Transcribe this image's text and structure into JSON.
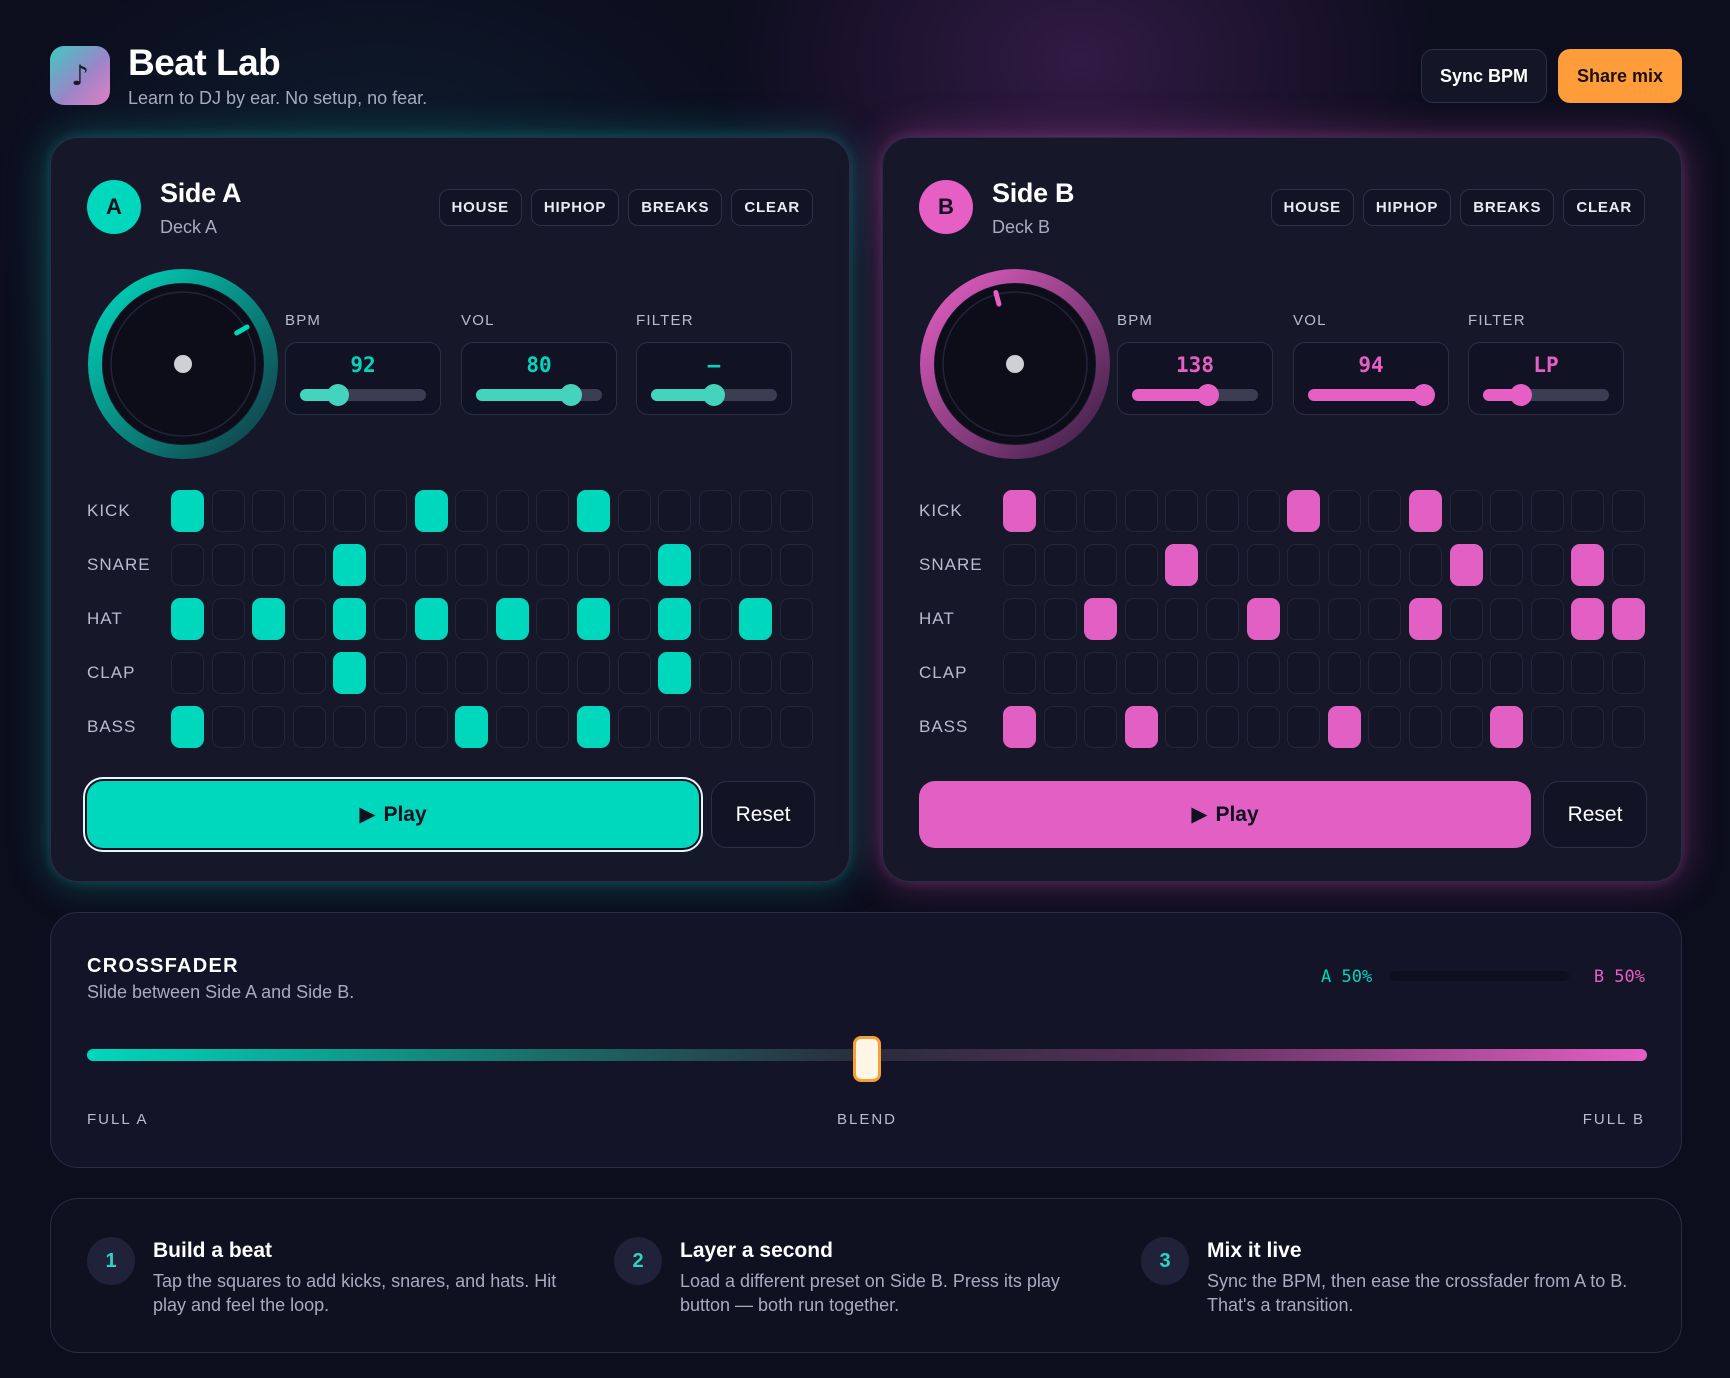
{
  "app": {
    "icon": "music-note-icon",
    "title": "Beat Lab",
    "subtitle": "Learn to DJ by ear. No setup, no fear.",
    "sync_label": "Sync BPM",
    "share_label": "Share mix"
  },
  "colors": {
    "deck_a": "#00d8bd",
    "deck_b": "#e55fc4",
    "accent": "#ff9d3a",
    "background": "#0c0d1d"
  },
  "deck_a": {
    "badge": "A",
    "title": "Side A",
    "subtitle": "Deck A",
    "presets": [
      "HOUSE",
      "HIPHOP",
      "BREAKS",
      "CLEAR"
    ],
    "controls": {
      "bpm": {
        "label": "BPM",
        "value": "92",
        "level": 0.3
      },
      "vol": {
        "label": "VOL",
        "value": "80",
        "level": 0.75
      },
      "filter": {
        "label": "FILTER",
        "value": "–",
        "level": 0.5
      }
    },
    "jog_angle_deg": 60,
    "rows": [
      {
        "label": "KICK",
        "steps": [
          1,
          0,
          0,
          0,
          0,
          0,
          1,
          0,
          0,
          0,
          1,
          0,
          0,
          0,
          0,
          0
        ]
      },
      {
        "label": "SNARE",
        "steps": [
          0,
          0,
          0,
          0,
          1,
          0,
          0,
          0,
          0,
          0,
          0,
          0,
          1,
          0,
          0,
          0
        ]
      },
      {
        "label": "HAT",
        "steps": [
          1,
          0,
          1,
          0,
          1,
          0,
          1,
          0,
          1,
          0,
          1,
          0,
          1,
          0,
          1,
          0
        ]
      },
      {
        "label": "CLAP",
        "steps": [
          0,
          0,
          0,
          0,
          1,
          0,
          0,
          0,
          0,
          0,
          0,
          0,
          1,
          0,
          0,
          0
        ]
      },
      {
        "label": "BASS",
        "steps": [
          1,
          0,
          0,
          0,
          0,
          0,
          0,
          1,
          0,
          0,
          1,
          0,
          0,
          0,
          0,
          0
        ]
      }
    ],
    "play_label": "Play",
    "reset_label": "Reset"
  },
  "deck_b": {
    "badge": "B",
    "title": "Side B",
    "subtitle": "Deck B",
    "presets": [
      "HOUSE",
      "HIPHOP",
      "BREAKS",
      "CLEAR"
    ],
    "controls": {
      "bpm": {
        "label": "BPM",
        "value": "138",
        "level": 0.6
      },
      "vol": {
        "label": "VOL",
        "value": "94",
        "level": 0.92
      },
      "filter": {
        "label": "FILTER",
        "value": "LP",
        "level": 0.3
      }
    },
    "jog_angle_deg": -15,
    "rows": [
      {
        "label": "KICK",
        "steps": [
          1,
          0,
          0,
          0,
          0,
          0,
          0,
          1,
          0,
          0,
          1,
          0,
          0,
          0,
          0,
          0
        ]
      },
      {
        "label": "SNARE",
        "steps": [
          0,
          0,
          0,
          0,
          1,
          0,
          0,
          0,
          0,
          0,
          0,
          1,
          0,
          0,
          1,
          0
        ]
      },
      {
        "label": "HAT",
        "steps": [
          0,
          0,
          1,
          0,
          0,
          0,
          1,
          0,
          0,
          0,
          1,
          0,
          0,
          0,
          1,
          1
        ]
      },
      {
        "label": "CLAP",
        "steps": [
          0,
          0,
          0,
          0,
          0,
          0,
          0,
          0,
          0,
          0,
          0,
          0,
          0,
          0,
          0,
          0
        ]
      },
      {
        "label": "BASS",
        "steps": [
          1,
          0,
          0,
          1,
          0,
          0,
          0,
          0,
          1,
          0,
          0,
          0,
          1,
          0,
          0,
          0
        ]
      }
    ],
    "play_label": "Play",
    "reset_label": "Reset"
  },
  "crossfader": {
    "title": "CROSSFADER",
    "subtitle": "Slide between Side A and Side B.",
    "mix_a": "A 50%",
    "mix_b": "B 50%",
    "position": 0.5,
    "label_left": "FULL A",
    "label_mid": "BLEND",
    "label_right": "FULL B"
  },
  "guide": [
    {
      "num": "1",
      "title": "Build a beat",
      "text": "Tap the squares to add kicks, snares, and hats. Hit play and feel the loop."
    },
    {
      "num": "2",
      "title": "Layer a second",
      "text": "Load a different preset on Side B. Press its play button — both run together."
    },
    {
      "num": "3",
      "title": "Mix it live",
      "text": "Sync the BPM, then ease the crossfader from A to B. That's a transition."
    }
  ]
}
